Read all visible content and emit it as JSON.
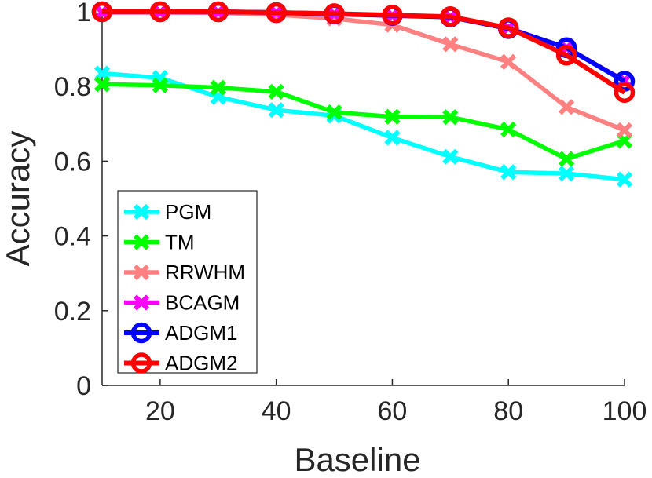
{
  "chart_data": {
    "type": "line",
    "title": "",
    "xlabel": "Baseline",
    "ylabel": "Accuracy",
    "xlim": [
      10,
      100
    ],
    "ylim": [
      0,
      1
    ],
    "xticks": [
      20,
      40,
      60,
      80,
      100
    ],
    "yticks": [
      0,
      0.2,
      0.4,
      0.6,
      0.8,
      1
    ],
    "ytick_labels": [
      "0",
      "0.2",
      "0.4",
      "0.6",
      "0.8",
      "1"
    ],
    "grid": false,
    "legend_position": "bottom-left",
    "x": [
      10,
      20,
      30,
      40,
      50,
      60,
      70,
      80,
      90,
      100
    ],
    "series": [
      {
        "name": "PGM",
        "color": "#00ffff",
        "marker": "x",
        "values": [
          0.835,
          0.823,
          0.772,
          0.737,
          0.722,
          0.663,
          0.612,
          0.571,
          0.567,
          0.551
        ]
      },
      {
        "name": "TM",
        "color": "#00ff00",
        "marker": "x",
        "values": [
          0.806,
          0.803,
          0.797,
          0.786,
          0.731,
          0.719,
          0.718,
          0.685,
          0.606,
          0.655
        ]
      },
      {
        "name": "RRWHM",
        "color": "#ff8080",
        "marker": "x",
        "values": [
          0.998,
          0.998,
          0.997,
          0.992,
          0.982,
          0.965,
          0.913,
          0.866,
          0.745,
          0.683
        ]
      },
      {
        "name": "BCAGM",
        "color": "#ff00ff",
        "marker": "x",
        "values": [
          0.999,
          0.999,
          0.999,
          0.998,
          0.994,
          0.99,
          0.986,
          0.957,
          0.903,
          0.816
        ]
      },
      {
        "name": "ADGM1",
        "color": "#0000ff",
        "marker": "o",
        "values": [
          1.0,
          1.0,
          1.0,
          0.998,
          0.994,
          0.99,
          0.986,
          0.955,
          0.904,
          0.814
        ]
      },
      {
        "name": "ADGM2",
        "color": "#ff0000",
        "marker": "o",
        "values": [
          1.0,
          1.0,
          1.0,
          0.998,
          0.995,
          0.991,
          0.987,
          0.957,
          0.884,
          0.784
        ]
      }
    ]
  }
}
